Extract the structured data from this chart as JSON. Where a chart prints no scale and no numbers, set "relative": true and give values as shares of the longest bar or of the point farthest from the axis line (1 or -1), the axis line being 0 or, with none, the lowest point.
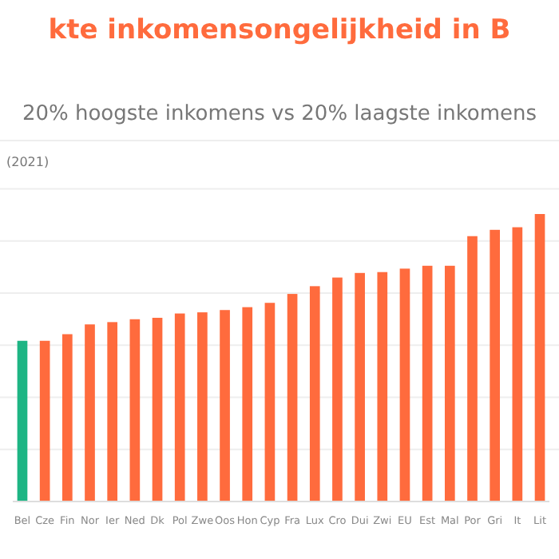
{
  "chart_data": {
    "type": "bar",
    "title": "kte inkomensongelijkheid in B",
    "subtitle": "20% hoogste inkomens vs 20% laagste inkomens",
    "annotations": [
      "(2021)"
    ],
    "relative": true,
    "grid": "y",
    "categories": [
      "Bel",
      "Cze",
      "Fin",
      "Nor",
      "Ier",
      "Ned",
      "Dk",
      "Pol",
      "Zwe",
      "Oos",
      "Hon",
      "Cyp",
      "Fra",
      "Lux",
      "Cro",
      "Dui",
      "Zwi",
      "EU",
      "Est",
      "Mal",
      "Por",
      "Gri",
      "It",
      "Lit"
    ],
    "values": [
      0.559,
      0.559,
      0.582,
      0.616,
      0.624,
      0.634,
      0.639,
      0.654,
      0.658,
      0.666,
      0.676,
      0.691,
      0.722,
      0.749,
      0.779,
      0.795,
      0.798,
      0.81,
      0.82,
      0.82,
      0.923,
      0.945,
      0.954,
      1
    ],
    "colors": [
      "#1db584",
      "#ff6b3d",
      "#ff6b3d",
      "#ff6b3d",
      "#ff6b3d",
      "#ff6b3d",
      "#ff6b3d",
      "#ff6b3d",
      "#ff6b3d",
      "#ff6b3d",
      "#ff6b3d",
      "#ff6b3d",
      "#ff6b3d",
      "#ff6b3d",
      "#ff6b3d",
      "#ff6b3d",
      "#ff6b3d",
      "#ff6b3d",
      "#ff6b3d",
      "#ff6b3d",
      "#ff6b3d",
      "#ff6b3d",
      "#ff6b3d",
      "#ff6b3d"
    ]
  }
}
